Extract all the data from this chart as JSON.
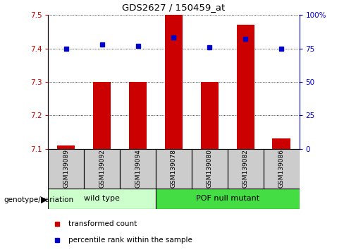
{
  "title": "GDS2627 / 150459_at",
  "samples": [
    "GSM139089",
    "GSM139092",
    "GSM139094",
    "GSM139078",
    "GSM139080",
    "GSM139082",
    "GSM139086"
  ],
  "transformed_count": [
    7.11,
    7.3,
    7.3,
    7.5,
    7.3,
    7.47,
    7.13
  ],
  "percentile_rank": [
    75,
    78,
    77,
    83,
    76,
    82,
    75
  ],
  "groups": [
    {
      "label": "wild type",
      "indices": [
        0,
        1,
        2
      ],
      "color": "#ccffcc"
    },
    {
      "label": "POF null mutant",
      "indices": [
        3,
        4,
        5,
        6
      ],
      "color": "#44dd44"
    }
  ],
  "ylim_left": [
    7.1,
    7.5
  ],
  "ylim_right": [
    0,
    100
  ],
  "yticks_left": [
    7.1,
    7.2,
    7.3,
    7.4,
    7.5
  ],
  "yticks_right": [
    0,
    25,
    50,
    75,
    100
  ],
  "ytick_labels_right": [
    "0",
    "25",
    "50",
    "75",
    "100%"
  ],
  "bar_color": "#cc0000",
  "dot_color": "#0000cc",
  "bar_width": 0.5,
  "left_axis_color": "#cc0000",
  "right_axis_color": "#0000cc",
  "legend_items": [
    {
      "label": "transformed count",
      "color": "#cc0000"
    },
    {
      "label": "percentile rank within the sample",
      "color": "#0000cc"
    }
  ],
  "genotype_label": "genotype/variation",
  "background_color": "#ffffff",
  "tick_label_color_left": "#cc0000",
  "tick_label_color_right": "#0000cc",
  "sample_box_color": "#cccccc",
  "figsize": [
    4.88,
    3.54
  ],
  "dpi": 100
}
